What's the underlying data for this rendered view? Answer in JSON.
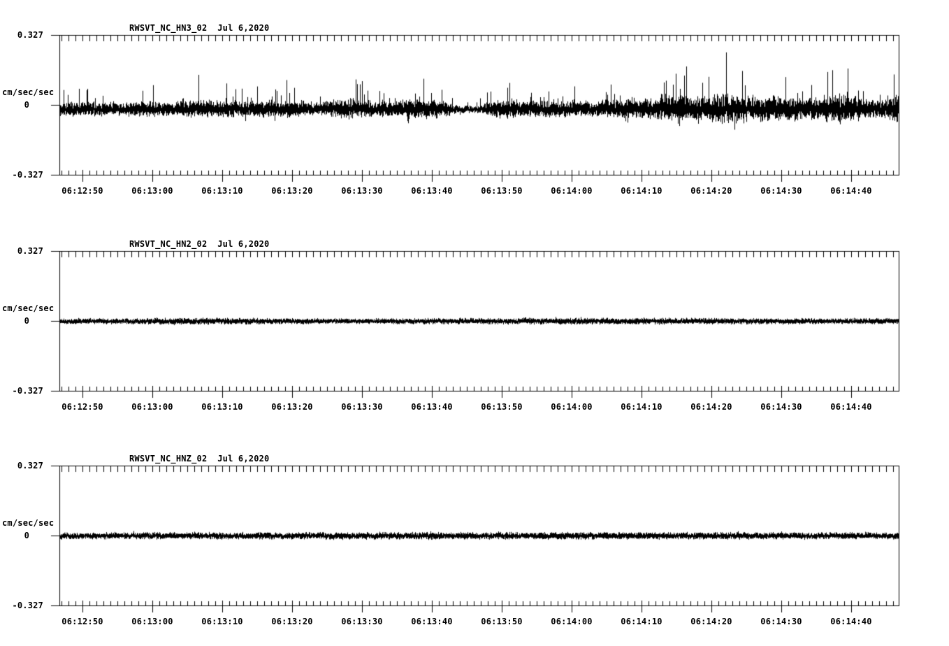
{
  "figure": {
    "background": "#ffffff",
    "foreground": "#000000"
  },
  "chart_data": [
    {
      "type": "line",
      "title": "RWSVT_NC_HN3_02  Jul 6,2020",
      "ylabel": "cm/sec/sec",
      "yticks": [
        "0.327",
        "0",
        "-0.327"
      ],
      "ylim": [
        -0.327,
        0.327
      ],
      "x_tick_labels": [
        "06:12:50",
        "06:13:00",
        "06:13:10",
        "06:13:20",
        "06:13:30",
        "06:13:40",
        "06:13:50",
        "06:14:00",
        "06:14:10",
        "06:14:20",
        "06:14:30",
        "06:14:40"
      ],
      "x_span_seconds": 120,
      "grid": false,
      "legend": false,
      "noise_model": {
        "seed": 7,
        "baseline": -0.02,
        "asym": 0.85,
        "spike_prob": 0.12,
        "neg_spike_prob": 0.05,
        "t": [
          0,
          2,
          4,
          6,
          8,
          10,
          12,
          14,
          16,
          18,
          20,
          22,
          24,
          26,
          28,
          30,
          32,
          34,
          36,
          38,
          40,
          42,
          44,
          46,
          48,
          50,
          52,
          54,
          56,
          58,
          60,
          62,
          64,
          66,
          68,
          70,
          72,
          74,
          76,
          78,
          80,
          82,
          84,
          86,
          88,
          90,
          92,
          94,
          96,
          98,
          100,
          102,
          104,
          106,
          108,
          110,
          112,
          114,
          116,
          118,
          120
        ],
        "spike_env": [
          0.1,
          0.13,
          0.15,
          0.12,
          0.1,
          0.11,
          0.12,
          0.13,
          0.11,
          0.14,
          0.2,
          0.13,
          0.14,
          0.12,
          0.13,
          0.13,
          0.14,
          0.11,
          0.1,
          0.12,
          0.21,
          0.17,
          0.12,
          0.11,
          0.14,
          0.18,
          0.15,
          0.17,
          0.09,
          0.05,
          0.06,
          0.14,
          0.17,
          0.14,
          0.13,
          0.15,
          0.13,
          0.16,
          0.13,
          0.14,
          0.15,
          0.17,
          0.15,
          0.18,
          0.26,
          0.21,
          0.19,
          0.28,
          0.24,
          0.2,
          0.18,
          0.22,
          0.17,
          0.16,
          0.17,
          0.22,
          0.24,
          0.19,
          0.14,
          0.13,
          0.26
        ],
        "band_env": [
          0.022,
          0.025,
          0.026,
          0.024,
          0.022,
          0.024,
          0.026,
          0.028,
          0.025,
          0.028,
          0.032,
          0.03,
          0.03,
          0.028,
          0.028,
          0.03,
          0.032,
          0.026,
          0.022,
          0.026,
          0.036,
          0.034,
          0.028,
          0.026,
          0.03,
          0.036,
          0.034,
          0.034,
          0.018,
          0.012,
          0.014,
          0.03,
          0.034,
          0.03,
          0.028,
          0.032,
          0.028,
          0.032,
          0.028,
          0.03,
          0.032,
          0.036,
          0.034,
          0.04,
          0.05,
          0.046,
          0.044,
          0.055,
          0.052,
          0.046,
          0.042,
          0.048,
          0.04,
          0.038,
          0.04,
          0.048,
          0.052,
          0.044,
          0.034,
          0.03,
          0.05
        ]
      }
    },
    {
      "type": "line",
      "title": "RWSVT_NC_HN2_02  Jul 6,2020",
      "ylabel": "cm/sec/sec",
      "yticks": [
        "0.327",
        "0",
        "-0.327"
      ],
      "ylim": [
        -0.327,
        0.327
      ],
      "x_tick_labels": [
        "06:12:50",
        "06:13:00",
        "06:13:10",
        "06:13:20",
        "06:13:30",
        "06:13:40",
        "06:13:50",
        "06:14:00",
        "06:14:10",
        "06:14:20",
        "06:14:30",
        "06:14:40"
      ],
      "x_span_seconds": 120,
      "grid": false,
      "legend": false,
      "noise_model": {
        "seed": 11,
        "baseline": 0.0,
        "asym": 1.0,
        "spike_prob": 0.06,
        "neg_spike_prob": 0.05,
        "t": [
          0,
          20,
          40,
          60,
          80,
          100,
          120
        ],
        "spike_env": [
          0.016,
          0.019,
          0.015,
          0.017,
          0.019,
          0.016,
          0.017
        ],
        "band_env": [
          0.009,
          0.011,
          0.009,
          0.01,
          0.011,
          0.01,
          0.01
        ]
      }
    },
    {
      "type": "line",
      "title": "RWSVT_NC_HNZ_02  Jul 6,2020",
      "ylabel": "cm/sec/sec",
      "yticks": [
        "0.327",
        "0",
        "-0.327"
      ],
      "ylim": [
        -0.327,
        0.327
      ],
      "x_tick_labels": [
        "06:12:50",
        "06:13:00",
        "06:13:10",
        "06:13:20",
        "06:13:30",
        "06:13:40",
        "06:13:50",
        "06:14:00",
        "06:14:10",
        "06:14:20",
        "06:14:30",
        "06:14:40"
      ],
      "x_span_seconds": 120,
      "grid": false,
      "legend": false,
      "noise_model": {
        "seed": 23,
        "baseline": 0.0,
        "asym": 1.0,
        "spike_prob": 0.05,
        "neg_spike_prob": 0.05,
        "t": [
          0,
          40,
          80,
          120
        ],
        "spike_env": [
          0.018,
          0.017,
          0.019,
          0.018
        ],
        "band_env": [
          0.011,
          0.012,
          0.012,
          0.011
        ]
      }
    }
  ]
}
